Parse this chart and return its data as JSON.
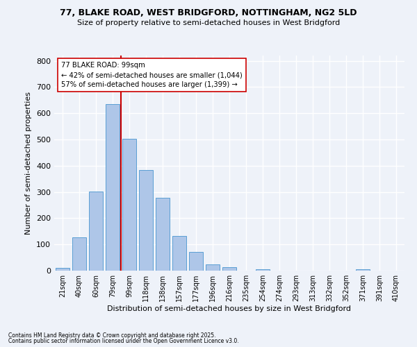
{
  "title1": "77, BLAKE ROAD, WEST BRIDGFORD, NOTTINGHAM, NG2 5LD",
  "title2": "Size of property relative to semi-detached houses in West Bridgford",
  "bar_labels": [
    "21sqm",
    "40sqm",
    "60sqm",
    "79sqm",
    "99sqm",
    "118sqm",
    "138sqm",
    "157sqm",
    "177sqm",
    "196sqm",
    "216sqm",
    "235sqm",
    "254sqm",
    "274sqm",
    "293sqm",
    "313sqm",
    "332sqm",
    "352sqm",
    "371sqm",
    "391sqm",
    "410sqm"
  ],
  "bar_values": [
    10,
    128,
    301,
    635,
    503,
    383,
    278,
    131,
    72,
    25,
    12,
    0,
    5,
    0,
    0,
    0,
    0,
    0,
    4,
    0,
    0
  ],
  "bar_color": "#aec6e8",
  "bar_edge_color": "#5a9fd4",
  "property_line_color": "#cc0000",
  "annotation_text1": "77 BLAKE ROAD: 99sqm",
  "annotation_text2": "← 42% of semi-detached houses are smaller (1,044)",
  "annotation_text3": "57% of semi-detached houses are larger (1,399) →",
  "xlabel": "Distribution of semi-detached houses by size in West Bridgford",
  "ylabel": "Number of semi-detached properties",
  "ylim": [
    0,
    820
  ],
  "yticks": [
    0,
    100,
    200,
    300,
    400,
    500,
    600,
    700,
    800
  ],
  "footnote1": "Contains HM Land Registry data © Crown copyright and database right 2025.",
  "footnote2": "Contains public sector information licensed under the Open Government Licence v3.0.",
  "bg_color": "#eef2f9",
  "grid_color": "#ffffff"
}
